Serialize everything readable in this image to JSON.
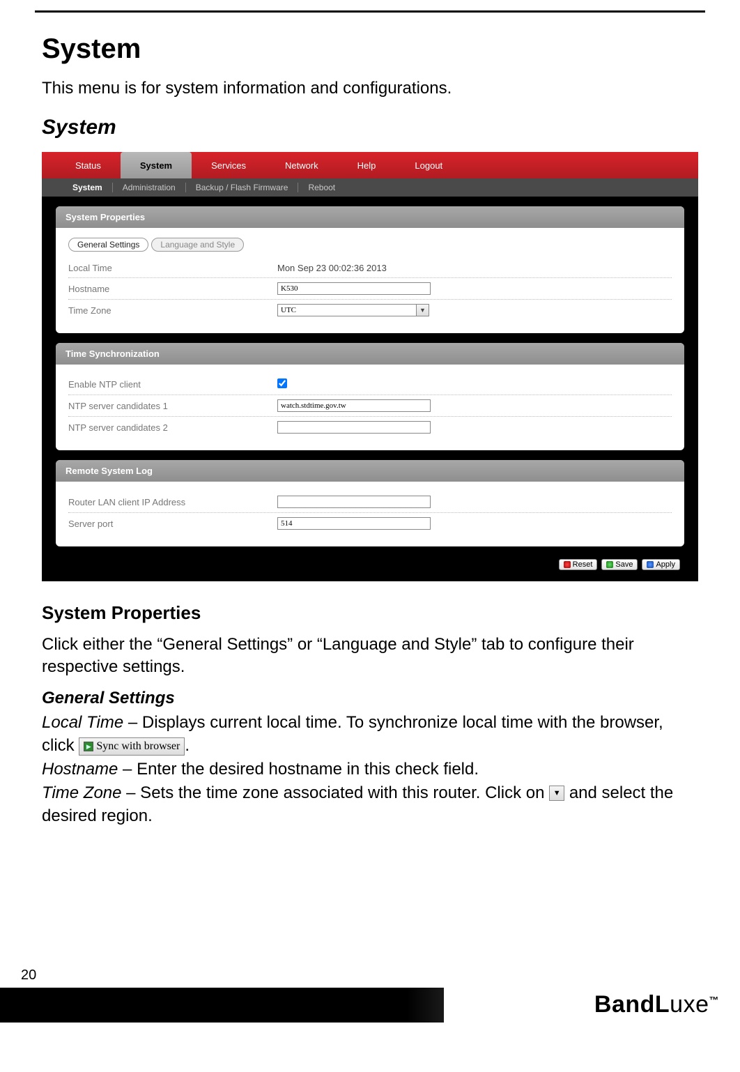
{
  "page_number": "20",
  "title": "System",
  "intro": "This menu is for system information and configurations.",
  "section_title": "System",
  "topnav": [
    "Status",
    "System",
    "Services",
    "Network",
    "Help",
    "Logout"
  ],
  "topnav_active_index": 1,
  "subnav": [
    "System",
    "Administration",
    "Backup / Flash Firmware",
    "Reboot"
  ],
  "subnav_active_index": 0,
  "panels": {
    "system_properties": {
      "header": "System Properties",
      "tabs": [
        "General Settings",
        "Language and Style"
      ],
      "tabs_active_index": 0,
      "rows": {
        "local_time_label": "Local Time",
        "local_time_value": "Mon Sep 23 00:02:36 2013",
        "hostname_label": "Hostname",
        "hostname_value": "K530",
        "timezone_label": "Time Zone",
        "timezone_value": "UTC"
      }
    },
    "time_sync": {
      "header": "Time Synchronization",
      "rows": {
        "enable_label": "Enable NTP client",
        "enable_checked": true,
        "ntp1_label": "NTP server candidates 1",
        "ntp1_value": "watch.stdtime.gov.tw",
        "ntp2_label": "NTP server candidates 2",
        "ntp2_value": ""
      }
    },
    "remote_log": {
      "header": "Remote System Log",
      "rows": {
        "ip_label": "Router LAN client IP Address",
        "ip_value": "",
        "port_label": "Server port",
        "port_value": "514"
      }
    }
  },
  "footer_buttons": {
    "reset": "Reset",
    "save": "Save",
    "apply": "Apply"
  },
  "doc": {
    "sp_head": "System Properties",
    "sp_body": "Click either the “General Settings” or “Language and Style” tab to configure their respective settings.",
    "gs_head": "General Settings",
    "local_time_term": "Local Time",
    "local_time_desc_1": " – Displays current local time. To synchronize local time with the browser, click ",
    "sync_btn": "Sync with browser",
    "hostname_term": "Hostname",
    "hostname_desc": " – Enter the desired hostname in this check field.",
    "timezone_term": "Time Zone",
    "timezone_desc_1": " – Sets the time zone associated with this router. Click on ",
    "timezone_desc_2": " and select the desired region."
  },
  "brand": "BandLuxe",
  "colors": {
    "nav_red_top": "#d8232a",
    "nav_red_bottom": "#b01c22",
    "panel_header_top": "#a8a8a8",
    "panel_header_bottom": "#8e8e8e",
    "subnav_bg": "#4a4a4a"
  }
}
